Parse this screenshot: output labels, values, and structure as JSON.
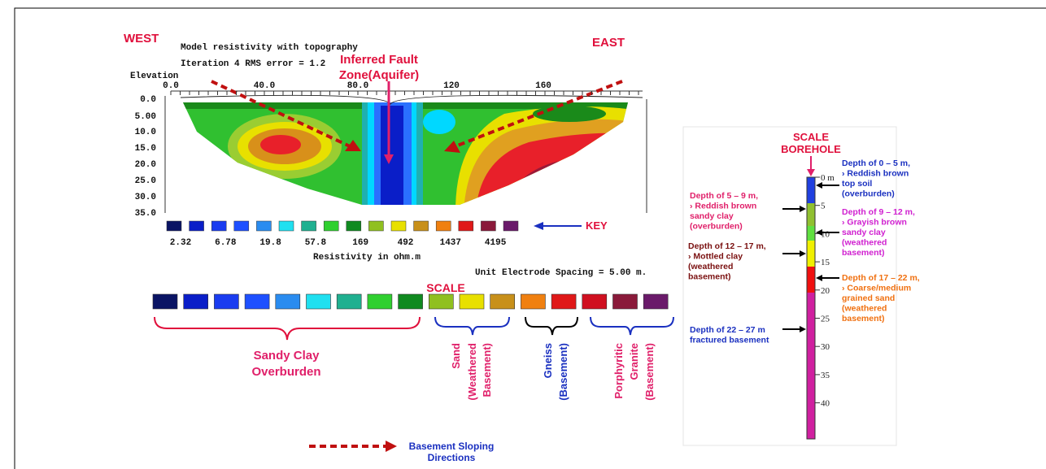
{
  "section": {
    "west": "WEST",
    "east": "EAST",
    "title_lines": [
      "Model resistivity with topography",
      "Iteration 4 RMS error  = 1.2"
    ],
    "fault_label": [
      "Inferred Fault",
      "Zone(Aquifer)"
    ],
    "elevation_label": "Elevation",
    "x_labels": [
      "0.0",
      "40.0",
      "80.0",
      "120",
      "160"
    ],
    "y_labels": [
      "0.0",
      "5.00",
      "10.0",
      "15.0",
      "20.0",
      "25.0",
      "30.0",
      "35.0"
    ],
    "key_label": "KEY",
    "key_values": [
      2.32,
      6.78,
      19.8,
      57.8,
      169,
      492,
      1437,
      4195
    ],
    "resistivity_label": "Resistivity in ohm.m",
    "spacing_label": "Unit Electrode Spacing = 5.00 m."
  },
  "scale": {
    "title": "SCALE",
    "groups": [
      {
        "lines": [
          "Sandy Clay",
          "Overburden"
        ]
      },
      {
        "lines": [
          "Sand",
          "(Weathered",
          "Basement)"
        ]
      },
      {
        "lines": [
          "Gneiss",
          "(Basement)"
        ]
      },
      {
        "lines": [
          "Porphyritic",
          "Granite",
          "(Basement)"
        ]
      }
    ]
  },
  "legend": {
    "lines": [
      "Basement Sloping",
      "Directions"
    ]
  },
  "borehole": {
    "title": [
      "SCALE",
      "BOREHOLE"
    ],
    "depths": [
      "0 m",
      5,
      10,
      15,
      20,
      25,
      30,
      35,
      40
    ],
    "notes": [
      {
        "lines": [
          "Depth of 0 – 5 m,",
          "› Reddish brown",
          "top soil",
          "(overburden)"
        ]
      },
      {
        "lines": [
          "Depth of 5 – 9 m,",
          "› Reddish brown",
          "sandy clay",
          "(overburden)"
        ]
      },
      {
        "lines": [
          "Depth of 9 – 12 m,",
          "› Grayish brown",
          "sandy clay",
          "(weathered",
          "basement)"
        ]
      },
      {
        "lines": [
          "Depth of 12 – 17 m,",
          "› Mottled clay",
          "(weathered",
          "basement)"
        ]
      },
      {
        "lines": [
          "Depth of 17 – 22 m,",
          "› Coarse/medium",
          "grained sand",
          "(weathered",
          "basement)"
        ]
      },
      {
        "lines": [
          "Depth of 22 – 27 m",
          "fractured basement"
        ]
      }
    ]
  }
}
